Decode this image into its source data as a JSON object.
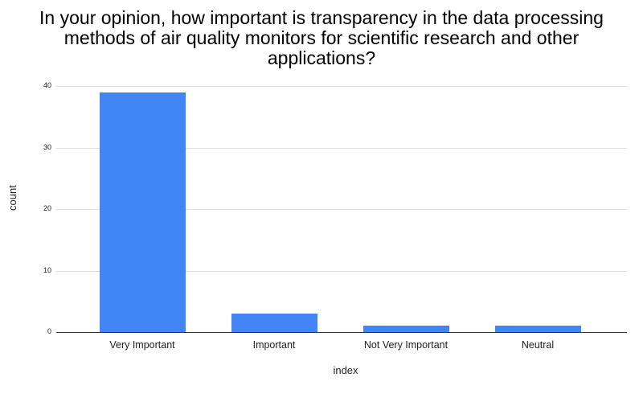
{
  "chart_data": {
    "type": "bar",
    "title": "In your opinion, how important is transparency in the data processing methods of air quality monitors for scientific research and other applications?",
    "title_lines": [
      "In your opinion, how important is transparency in the data processing",
      "methods of air quality monitors for scientific research and other",
      "applications?"
    ],
    "categories": [
      "Very Important",
      "Important",
      "Not Very Important",
      "Neutral"
    ],
    "values": [
      39,
      3,
      1,
      1
    ],
    "xlabel": "index",
    "ylabel": "count",
    "ylim": [
      0,
      40
    ],
    "yticks": [
      "0",
      "10",
      "20",
      "30",
      "40"
    ],
    "grid": true,
    "legend": "none",
    "bar_color": "#4285f4"
  }
}
